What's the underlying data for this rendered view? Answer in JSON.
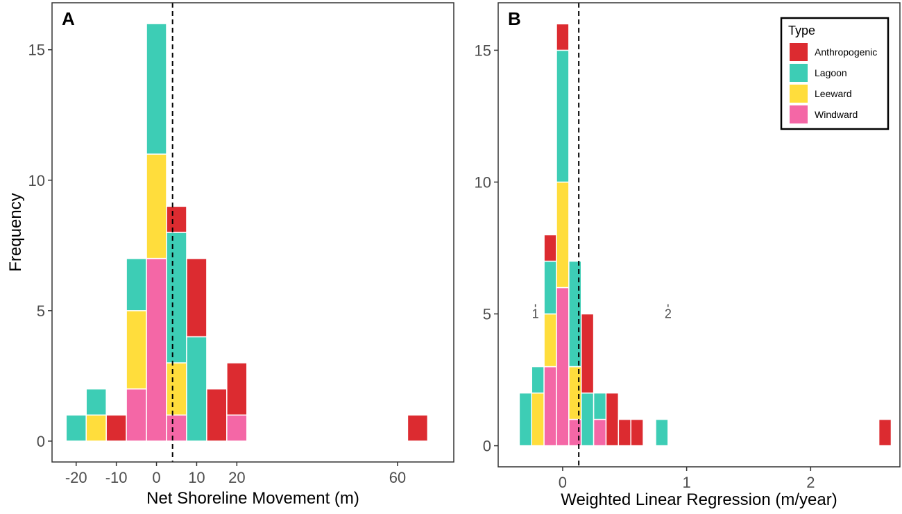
{
  "colors": {
    "Anthropogenic": "#DC2B30",
    "Lagoon": "#3DCDB5",
    "Leeward": "#FFDD3C",
    "Windward": "#F467A6"
  },
  "legend": {
    "title": "Type",
    "entries": [
      "Anthropogenic",
      "Lagoon",
      "Leeward",
      "Windward"
    ]
  },
  "chart_data": [
    {
      "type": "bar",
      "subtype": "stacked-histogram",
      "panel_label": "A",
      "title": "",
      "xlabel": "Net Shoreline Movement (m)",
      "ylabel": "Frequency",
      "xlim": [
        -26,
        74
      ],
      "ylim": [
        -0.8,
        16.8
      ],
      "xticks": [
        -20,
        -10,
        0,
        10,
        20,
        60
      ],
      "yticks": [
        0,
        5,
        10,
        15
      ],
      "bin_width": 5,
      "reference_line": 4,
      "bins": [
        {
          "x0": -22.5,
          "x1": -17.5,
          "Lagoon": 1
        },
        {
          "x0": -17.5,
          "x1": -12.5,
          "Leeward": 1,
          "Lagoon": 1
        },
        {
          "x0": -12.5,
          "x1": -7.5,
          "Anthropogenic": 1
        },
        {
          "x0": -7.5,
          "x1": -2.5,
          "Windward": 2,
          "Leeward": 3,
          "Lagoon": 2
        },
        {
          "x0": -2.5,
          "x1": 2.5,
          "Windward": 7,
          "Leeward": 4,
          "Lagoon": 5
        },
        {
          "x0": 2.5,
          "x1": 7.5,
          "Windward": 1,
          "Leeward": 2,
          "Lagoon": 5,
          "Anthropogenic": 1
        },
        {
          "x0": 7.5,
          "x1": 12.5,
          "Lagoon": 4,
          "Anthropogenic": 3
        },
        {
          "x0": 12.5,
          "x1": 17.5,
          "Anthropogenic": 2
        },
        {
          "x0": 17.5,
          "x1": 22.5,
          "Windward": 1,
          "Anthropogenic": 2
        },
        {
          "x0": 62.5,
          "x1": 67.5,
          "Anthropogenic": 1
        }
      ],
      "annotations": []
    },
    {
      "type": "bar",
      "subtype": "stacked-histogram",
      "panel_label": "B",
      "title": "",
      "xlabel": "Weighted Linear Regression (m/year)",
      "ylabel": "",
      "xlim": [
        -0.52,
        2.72
      ],
      "ylim": [
        -0.8,
        16.8
      ],
      "xticks": [
        0,
        1,
        2
      ],
      "yticks": [
        0,
        5,
        10,
        15
      ],
      "bin_width": 0.1,
      "reference_line": 0.13,
      "bins": [
        {
          "x0": -0.35,
          "x1": -0.25,
          "Lagoon": 2
        },
        {
          "x0": -0.25,
          "x1": -0.15,
          "Leeward": 2,
          "Lagoon": 1
        },
        {
          "x0": -0.15,
          "x1": -0.05,
          "Windward": 3,
          "Leeward": 2,
          "Lagoon": 2,
          "Anthropogenic": 1
        },
        {
          "x0": -0.05,
          "x1": 0.05,
          "Windward": 6,
          "Leeward": 4,
          "Lagoon": 5,
          "Anthropogenic": 1
        },
        {
          "x0": 0.05,
          "x1": 0.15,
          "Windward": 1,
          "Leeward": 2,
          "Lagoon": 4
        },
        {
          "x0": 0.15,
          "x1": 0.25,
          "Lagoon": 2,
          "Anthropogenic": 3
        },
        {
          "x0": 0.25,
          "x1": 0.35,
          "Windward": 1,
          "Lagoon": 1
        },
        {
          "x0": 0.35,
          "x1": 0.45,
          "Anthropogenic": 2
        },
        {
          "x0": 0.45,
          "x1": 0.55,
          "Anthropogenic": 1
        },
        {
          "x0": 0.55,
          "x1": 0.65,
          "Anthropogenic": 1
        },
        {
          "x0": 0.75,
          "x1": 0.85,
          "Lagoon": 1
        },
        {
          "x0": 2.55,
          "x1": 2.65,
          "Anthropogenic": 1
        }
      ],
      "annotations": [
        {
          "text": "1",
          "x": -0.22,
          "y": 5
        },
        {
          "text": "2",
          "x": 0.85,
          "y": 5
        }
      ]
    }
  ]
}
